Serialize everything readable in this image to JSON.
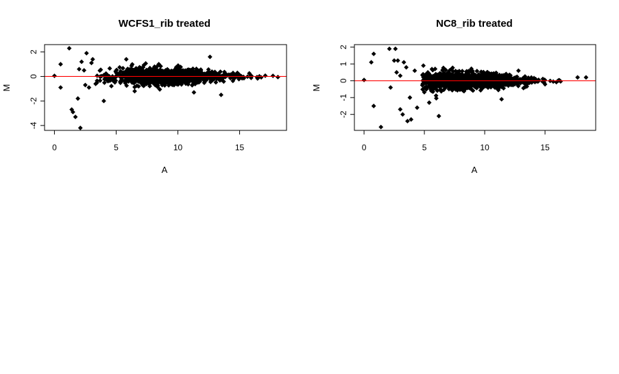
{
  "chart_data": [
    {
      "type": "scatter",
      "title": "WCFS1_rib treated",
      "xlabel": "A",
      "ylabel": "M",
      "xlim": [
        -0.8,
        18.8
      ],
      "ylim": [
        -4.4,
        2.6
      ],
      "xticks": [
        0,
        5,
        10,
        15
      ],
      "yticks": [
        -4,
        -2,
        0,
        2
      ],
      "hline": {
        "y": 0,
        "color": "#ff0000"
      },
      "marker_color": "#000000",
      "cloud": {
        "a_min": 3.3,
        "a_max": 17.3,
        "center_a": 9.5,
        "count": 1300,
        "seed": 11,
        "spread_scale": 0.55
      },
      "outliers": [
        [
          0.0,
          0.05
        ],
        [
          0.5,
          1.0
        ],
        [
          0.5,
          -0.9
        ],
        [
          1.2,
          2.3
        ],
        [
          1.4,
          -2.7
        ],
        [
          1.5,
          -2.9
        ],
        [
          1.7,
          -3.3
        ],
        [
          2.1,
          -4.2
        ],
        [
          1.9,
          -1.8
        ],
        [
          2.6,
          1.9
        ],
        [
          2.2,
          1.2
        ],
        [
          2.0,
          0.6
        ],
        [
          2.5,
          -0.7
        ],
        [
          3.0,
          1.1
        ],
        [
          2.8,
          -0.9
        ],
        [
          3.1,
          1.4
        ],
        [
          2.4,
          0.5
        ],
        [
          12.6,
          1.6
        ],
        [
          17.7,
          0.05
        ],
        [
          18.1,
          -0.05
        ],
        [
          13.5,
          -1.5
        ],
        [
          11.3,
          -1.3
        ],
        [
          6.5,
          -1.2
        ],
        [
          4.0,
          -2.0
        ]
      ]
    },
    {
      "type": "scatter",
      "title": "NC8_rib treated",
      "xlabel": "A",
      "ylabel": "M",
      "xlim": [
        -0.8,
        19.2
      ],
      "ylim": [
        -2.95,
        2.15
      ],
      "xticks": [
        0,
        5,
        10,
        15
      ],
      "yticks": [
        -2,
        -1,
        0,
        1,
        2
      ],
      "hline": {
        "y": 0,
        "color": "#ff0000"
      },
      "marker_color": "#000000",
      "cloud": {
        "a_min": 4.8,
        "a_max": 16.3,
        "center_a": 9.0,
        "count": 1300,
        "seed": 23,
        "spread_scale": 0.38
      },
      "outliers": [
        [
          0.0,
          0.05
        ],
        [
          0.6,
          1.1
        ],
        [
          0.8,
          1.6
        ],
        [
          0.8,
          -1.5
        ],
        [
          1.4,
          -2.75
        ],
        [
          2.1,
          1.9
        ],
        [
          2.6,
          1.9
        ],
        [
          2.5,
          1.2
        ],
        [
          2.8,
          1.2
        ],
        [
          3.3,
          1.1
        ],
        [
          3.0,
          -1.7
        ],
        [
          3.2,
          -2.0
        ],
        [
          3.6,
          -2.4
        ],
        [
          3.9,
          -2.3
        ],
        [
          2.2,
          -0.4
        ],
        [
          2.7,
          0.5
        ],
        [
          3.5,
          0.8
        ],
        [
          3.8,
          -1.0
        ],
        [
          4.2,
          0.6
        ],
        [
          6.2,
          -2.1
        ],
        [
          5.4,
          -1.3
        ],
        [
          11.4,
          -1.1
        ],
        [
          12.8,
          0.6
        ],
        [
          17.7,
          0.2
        ],
        [
          18.4,
          0.2
        ],
        [
          3.0,
          0.3
        ],
        [
          4.4,
          -1.6
        ]
      ]
    }
  ]
}
